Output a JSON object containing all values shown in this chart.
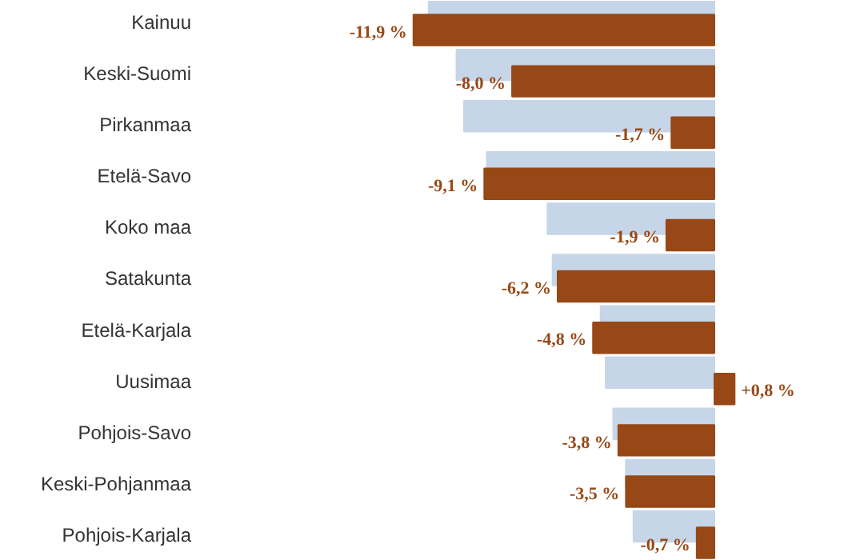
{
  "chart_data": {
    "type": "bar",
    "orientation": "horizontal",
    "categories": [
      "Kainuu",
      "Keski-Suomi",
      "Pirkanmaa",
      "Etelä-Savo",
      "Koko maa",
      "Satakunta",
      "Etelä-Karjala",
      "Uusimaa",
      "Pohjois-Savo",
      "Keski-Pohjanmaa",
      "Pohjois-Karjala"
    ],
    "series": [
      {
        "color": "#c6d5e8",
        "values": [
          -11.3,
          -10.2,
          -9.9,
          -9.0,
          -6.6,
          -6.4,
          -4.5,
          -4.3,
          -4.0,
          -3.5,
          -3.2
        ]
      },
      {
        "color": "#974816",
        "values": [
          -11.9,
          -8.0,
          -1.7,
          -9.1,
          -1.9,
          -6.2,
          -4.8,
          0.8,
          -3.8,
          -3.5,
          -0.7
        ],
        "value_labels": [
          "-11,9 %",
          "-8,0 %",
          "-1,7 %",
          "-9,1 %",
          "-1,9 %",
          "-6,2 %",
          "-4,8 %",
          "+0,8 %",
          "-3,8 %",
          "-3,5 %",
          "-0,7 %"
        ]
      }
    ],
    "tick_labels": "y"
  }
}
